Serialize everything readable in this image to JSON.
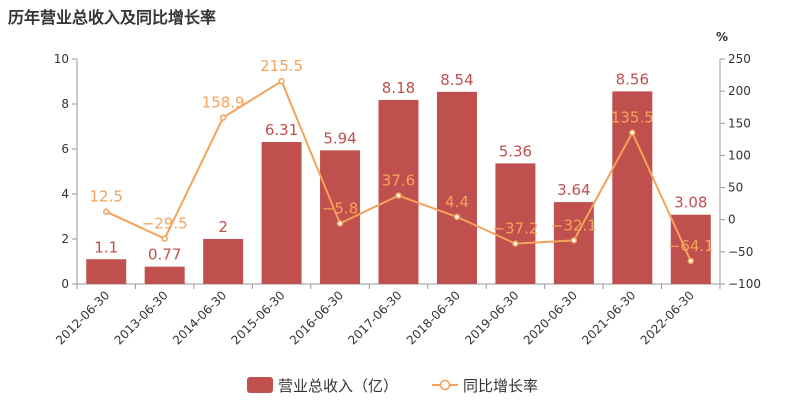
{
  "title": "历年营业总收入及同比增长率",
  "colors": {
    "bar": "#c0504d",
    "line": "#f4a259",
    "axis": "#999999",
    "text": "#333333"
  },
  "chart_data": {
    "type": "bar",
    "categories": [
      "2012-06-30",
      "2013-06-30",
      "2014-06-30",
      "2015-06-30",
      "2016-06-30",
      "2017-06-30",
      "2018-06-30",
      "2019-06-30",
      "2020-06-30",
      "2021-06-30",
      "2022-06-30"
    ],
    "series": [
      {
        "name": "营业总收入（亿）",
        "type": "bar",
        "axis": "left",
        "values": [
          1.1,
          0.77,
          2,
          6.31,
          5.94,
          8.18,
          8.54,
          5.36,
          3.64,
          8.56,
          3.08
        ],
        "labels": [
          "1.1",
          "0.77",
          "2",
          "6.31",
          "5.94",
          "8.18",
          "8.54",
          "5.36",
          "3.64",
          "8.56",
          "3.08"
        ]
      },
      {
        "name": "同比增长率",
        "type": "line",
        "axis": "right",
        "values": [
          12.5,
          -29.5,
          158.9,
          215.5,
          -5.8,
          37.6,
          4.4,
          -37.2,
          -32.1,
          135.5,
          -64.1
        ],
        "labels": [
          "12.5",
          "−29.5",
          "158.9",
          "215.5",
          "−5.8",
          "37.6",
          "4.4",
          "−37.2",
          "−32.1",
          "135.5",
          "−64.1"
        ]
      }
    ],
    "y_left": {
      "min": 0,
      "max": 10,
      "ticks": [
        "0",
        "2",
        "4",
        "6",
        "8",
        "10"
      ]
    },
    "y_right": {
      "min": -100,
      "max": 250,
      "unit": "%",
      "ticks": [
        "−100",
        "−50",
        "0",
        "50",
        "100",
        "150",
        "200",
        "250"
      ]
    },
    "legend_position": "bottom-center"
  }
}
